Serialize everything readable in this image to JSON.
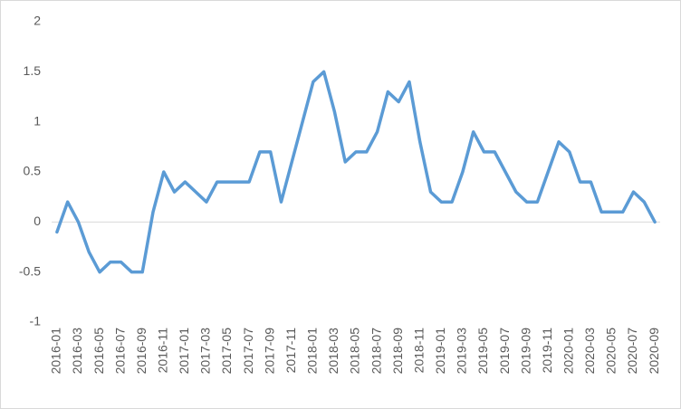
{
  "chart_data": {
    "type": "line",
    "categories": [
      "2016-01",
      null,
      "2016-03",
      null,
      "2016-05",
      null,
      "2016-07",
      null,
      "2016-09",
      null,
      "2016-11",
      null,
      "2017-01",
      null,
      "2017-03",
      null,
      "2017-05",
      null,
      "2017-07",
      null,
      "2017-09",
      null,
      "2017-11",
      null,
      "2018-01",
      null,
      "2018-03",
      null,
      "2018-05",
      null,
      "2018-07",
      null,
      "2018-09",
      null,
      "2018-11",
      null,
      "2019-01",
      null,
      "2019-03",
      null,
      "2019-05",
      null,
      "2019-07",
      null,
      "2019-09",
      null,
      "2019-11",
      null,
      "2020-01",
      null,
      "2020-03",
      null,
      "2020-05",
      null,
      "2020-07",
      null,
      "2020-09"
    ],
    "values": [
      -0.1,
      0.2,
      0,
      -0.3,
      -0.5,
      -0.4,
      -0.4,
      -0.5,
      -0.5,
      0.1,
      0.5,
      0.3,
      0.4,
      0.3,
      0.2,
      0.4,
      0.4,
      0.4,
      0.4,
      0.7,
      0.7,
      0.2,
      0.6,
      1.0,
      1.4,
      1.5,
      1.1,
      0.6,
      0.7,
      0.7,
      0.9,
      1.3,
      1.2,
      1.4,
      0.8,
      0.3,
      0.2,
      0.2,
      0.5,
      0.9,
      0.7,
      0.7,
      0.5,
      0.3,
      0.2,
      0.2,
      0.5,
      0.8,
      0.7,
      0.4,
      0.4,
      0.1,
      0.1,
      0.1,
      0.3,
      0.2,
      0
    ],
    "color": "#5b9bd5",
    "ylim": [
      -1,
      2
    ],
    "yticks": [
      -1,
      -0.5,
      0,
      0.5,
      1,
      1.5,
      2
    ],
    "grid": false
  }
}
